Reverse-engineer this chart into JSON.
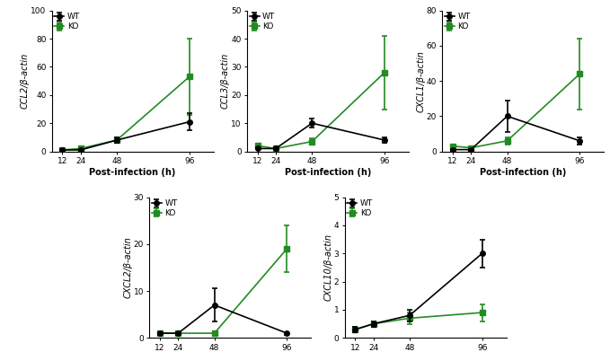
{
  "x": [
    12,
    24,
    48,
    96
  ],
  "plots": [
    {
      "ylabel": "CCL2/β-actin",
      "ylim": [
        0,
        100
      ],
      "yticks": [
        0,
        20,
        40,
        60,
        80,
        100
      ],
      "wt_mean": [
        1,
        1,
        8,
        21
      ],
      "wt_err": [
        0.5,
        0.5,
        2,
        6
      ],
      "ko_mean": [
        1,
        2,
        8,
        53
      ],
      "ko_err": [
        0.5,
        0.5,
        2,
        27
      ]
    },
    {
      "ylabel": "CCL3/β-actin",
      "ylim": [
        0,
        50
      ],
      "yticks": [
        0,
        10,
        20,
        30,
        40,
        50
      ],
      "wt_mean": [
        1,
        1,
        10,
        4
      ],
      "wt_err": [
        0.3,
        0.3,
        1.5,
        1
      ],
      "ko_mean": [
        2,
        1,
        3.5,
        28
      ],
      "ko_err": [
        0.5,
        0.3,
        1,
        13
      ]
    },
    {
      "ylabel": "CXCL1/β-actin",
      "ylim": [
        0,
        80
      ],
      "yticks": [
        0,
        20,
        40,
        60,
        80
      ],
      "wt_mean": [
        1,
        1,
        20,
        6
      ],
      "wt_err": [
        0.5,
        0.5,
        9,
        2
      ],
      "ko_mean": [
        3,
        2,
        6,
        44
      ],
      "ko_err": [
        0.5,
        0.5,
        2,
        20
      ]
    },
    {
      "ylabel": "CXCL2/β-actin",
      "ylim": [
        0,
        30
      ],
      "yticks": [
        0,
        10,
        20,
        30
      ],
      "wt_mean": [
        1,
        1,
        7,
        1
      ],
      "wt_err": [
        0.3,
        0.3,
        3.5,
        0.3
      ],
      "ko_mean": [
        1,
        1,
        1,
        19
      ],
      "ko_err": [
        0.3,
        0.3,
        0.3,
        5
      ]
    },
    {
      "ylabel": "CXCL10/β-actin",
      "ylim": [
        0,
        5
      ],
      "yticks": [
        0,
        1,
        2,
        3,
        4,
        5
      ],
      "wt_mean": [
        0.3,
        0.5,
        0.8,
        3
      ],
      "wt_err": [
        0.1,
        0.1,
        0.2,
        0.5
      ],
      "ko_mean": [
        0.3,
        0.5,
        0.7,
        0.9
      ],
      "ko_err": [
        0.1,
        0.1,
        0.2,
        0.3
      ]
    }
  ],
  "wt_color": "#000000",
  "ko_color": "#228B22",
  "xlabel": "Post-infection (h)",
  "xticks": [
    12,
    24,
    48,
    96
  ],
  "marker_wt": "o",
  "marker_ko": "s",
  "figsize": [
    6.79,
    3.92
  ],
  "dpi": 100
}
